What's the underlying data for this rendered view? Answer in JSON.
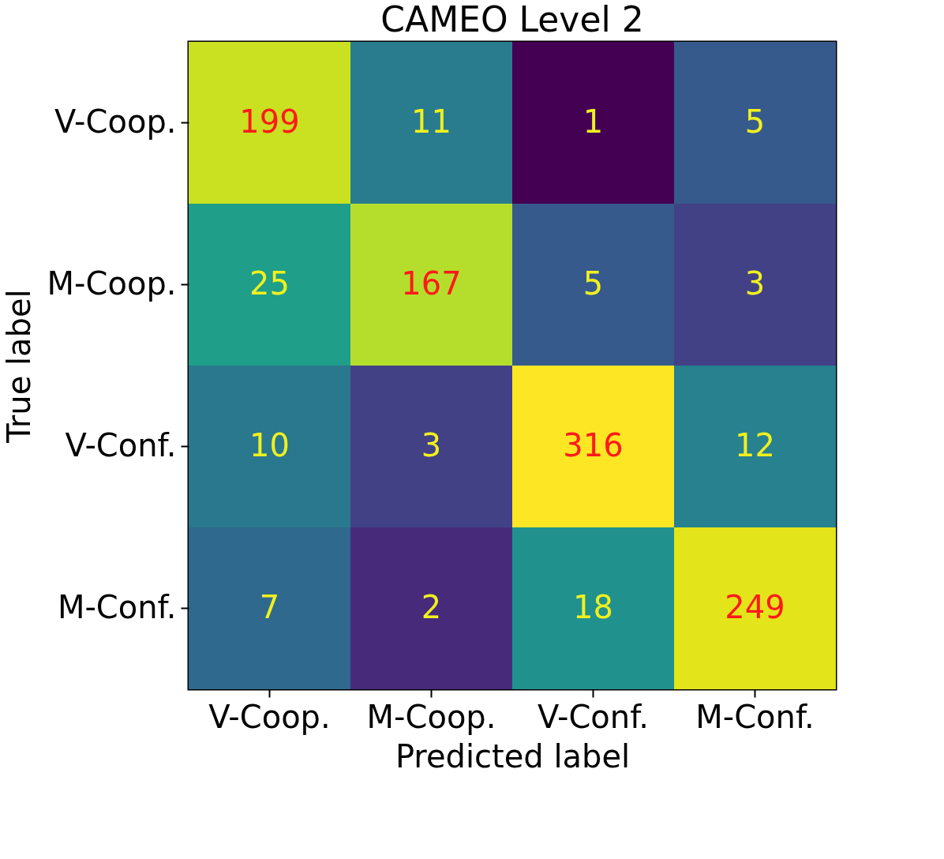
{
  "chart_data": {
    "type": "heatmap",
    "title": "CAMEO Level 2",
    "xlabel": "Predicted label",
    "ylabel": "True label",
    "categories": [
      "V-Coop.",
      "M-Coop.",
      "V-Conf.",
      "M-Conf."
    ],
    "y_categories": [
      "V-Coop.",
      "M-Coop.",
      "V-Conf.",
      "M-Conf."
    ],
    "cells": [
      [
        199,
        11,
        1,
        5
      ],
      [
        25,
        167,
        5,
        3
      ],
      [
        10,
        3,
        316,
        12
      ],
      [
        7,
        2,
        18,
        249
      ]
    ],
    "data_labels": true
  }
}
